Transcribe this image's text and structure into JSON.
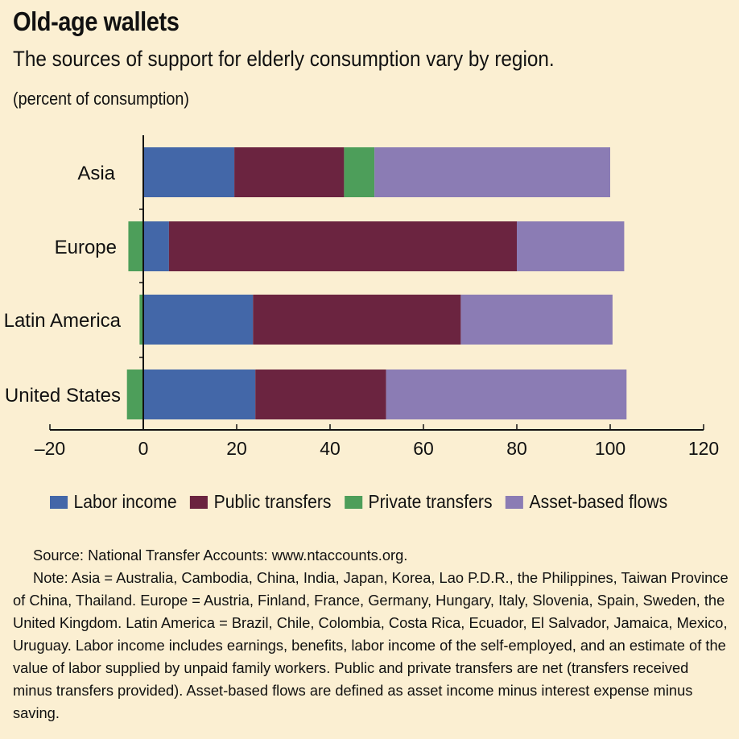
{
  "header": {
    "title": "Old-age wallets",
    "subtitle": "The sources of support for elderly consumption vary by region.",
    "unit": "(percent of consumption)"
  },
  "colors": {
    "background": "#fbefd2",
    "labor": "#4367a8",
    "public": "#6b2440",
    "private": "#4d9e5a",
    "asset": "#8b7cb4"
  },
  "legend": [
    {
      "label": "Labor income",
      "color": "#4367a8"
    },
    {
      "label": "Public transfers",
      "color": "#6b2440"
    },
    {
      "label": "Private transfers",
      "color": "#4d9e5a"
    },
    {
      "label": "Asset-based flows",
      "color": "#8b7cb4"
    }
  ],
  "chart_data": {
    "type": "bar",
    "orientation": "horizontal",
    "stacked": true,
    "categories": [
      "Asia",
      "Europe",
      "Latin America",
      "United States"
    ],
    "series": [
      {
        "name": "Labor income",
        "values": [
          19.5,
          5.5,
          23.5,
          24
        ]
      },
      {
        "name": "Public transfers",
        "values": [
          23.5,
          74.5,
          44.5,
          28
        ]
      },
      {
        "name": "Private transfers",
        "values": [
          6.5,
          -3.2,
          -0.8,
          -3.5
        ]
      },
      {
        "name": "Asset-based flows",
        "values": [
          50.5,
          23,
          32.5,
          51.5
        ]
      }
    ],
    "xlim": [
      -20,
      120
    ],
    "xticks": [
      "–20",
      "0",
      "20",
      "40",
      "60",
      "80",
      "100",
      "120"
    ],
    "xtick_values": [
      -20,
      0,
      20,
      40,
      60,
      80,
      100,
      120
    ],
    "legend_position": "bottom"
  },
  "notes": {
    "source": "Source: National Transfer Accounts: www.ntaccounts.org.",
    "note": "Note: Asia = Australia, Cambodia, China, India, Japan, Korea, Lao P.D.R., the Philippines, Taiwan Province of China, Thailand. Europe = Austria, Finland, France, Germany, Hungary, Italy, Slovenia, Spain, Sweden, the United Kingdom. Latin America = Brazil, Chile, Colombia, Costa Rica, Ecuador, El Salvador, Jamaica, Mexico, Uruguay. Labor income includes earnings, benefits, labor income of the self-employed, and an estimate of the value of labor supplied by unpaid family workers. Public and private transfers are net (transfers received minus transfers provided). Asset-based flows are defined as asset income minus interest expense minus saving."
  }
}
